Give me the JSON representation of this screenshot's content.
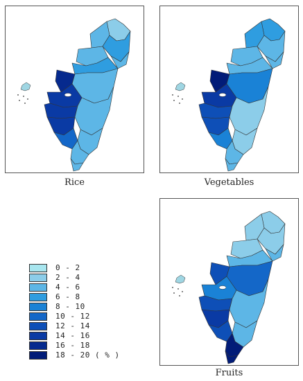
{
  "panels": [
    {
      "label": "Rice",
      "regions": {
        "n_tip": 1,
        "n_west": 2,
        "n_east": 3,
        "ne_coast": 2,
        "hsinchu": 2,
        "miaoli": 3,
        "central_w": 8,
        "central_e": 2,
        "ch_sw": 7,
        "ch_plain": 7,
        "sw_mid": 7,
        "sw_south": 5,
        "east_mid": 2,
        "east_lower": 2,
        "south_tip": 2,
        "south_far": 2
      }
    },
    {
      "label": "Vegetables",
      "regions": {
        "n_tip": 3,
        "n_west": 3,
        "n_east": 2,
        "ne_coast": 2,
        "hsinchu": 2,
        "miaoli": 2,
        "central_w": 9,
        "central_e": 4,
        "ch_sw": 7,
        "ch_plain": 6,
        "sw_mid": 6,
        "sw_south": 4,
        "east_mid": 1,
        "east_lower": 1,
        "south_tip": 2,
        "south_far": 2
      }
    },
    {
      "label": "Fruits",
      "regions": {
        "n_tip": 1,
        "n_west": 1,
        "n_east": 1,
        "ne_coast": 2,
        "hsinchu": 1,
        "miaoli": 2,
        "central_w": 6,
        "central_e": 5,
        "ch_sw": 4,
        "ch_plain": 6,
        "sw_mid": 7,
        "sw_south": 6,
        "east_mid": 2,
        "east_lower": 2,
        "south_tip": 9,
        "south_far": 9
      }
    }
  ],
  "legend": {
    "items": [
      {
        "label": "0 - 2",
        "color": "#a8e6ef"
      },
      {
        "label": "2 - 4",
        "color": "#8ccde9"
      },
      {
        "label": "4 - 6",
        "color": "#5db6e6"
      },
      {
        "label": "6 - 8",
        "color": "#2f9de0"
      },
      {
        "label": "8 - 10",
        "color": "#1a82d6"
      },
      {
        "label": "10 - 12",
        "color": "#1467c8"
      },
      {
        "label": "12 - 14",
        "color": "#0e4fb7"
      },
      {
        "label": "14 - 16",
        "color": "#0a3aa4"
      },
      {
        "label": "16 - 18",
        "color": "#062a8e"
      },
      {
        "label": "18 - 20 ( % )",
        "color": "#021c78"
      }
    ]
  }
}
